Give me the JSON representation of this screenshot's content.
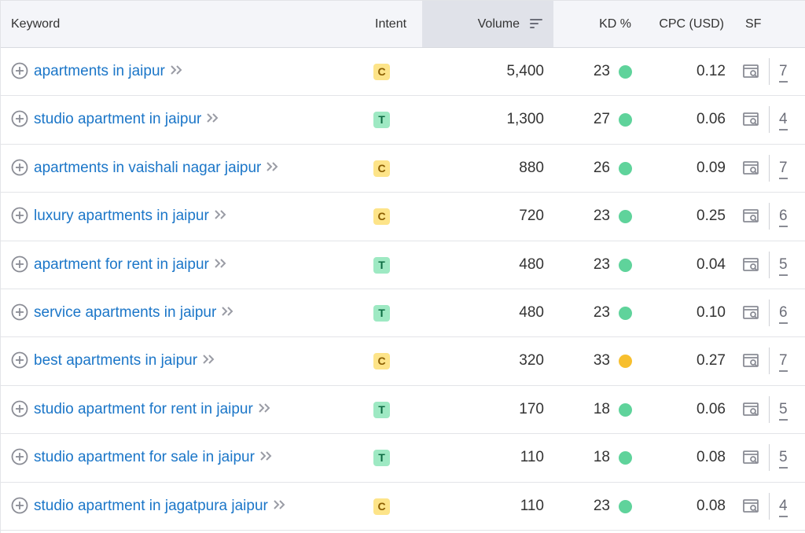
{
  "table": {
    "headers": {
      "keyword": "Keyword",
      "intent": "Intent",
      "volume": "Volume",
      "kd": "KD %",
      "cpc": "CPC (USD)",
      "sf": "SF"
    },
    "colors": {
      "link": "#1b76c8",
      "intent_c_bg": "#fde489",
      "intent_t_bg": "#9ee9c3",
      "kd_easy": "#5fd39b",
      "kd_medium": "#f7bf2e"
    },
    "rows": [
      {
        "keyword": "apartments in jaipur",
        "intent": "C",
        "volume": "5,400",
        "kd": "23",
        "kd_level": "easy",
        "cpc": "0.12",
        "sf": "7"
      },
      {
        "keyword": "studio apartment in jaipur",
        "intent": "T",
        "volume": "1,300",
        "kd": "27",
        "kd_level": "easy",
        "cpc": "0.06",
        "sf": "4"
      },
      {
        "keyword": "apartments in vaishali nagar jaipur",
        "intent": "C",
        "volume": "880",
        "kd": "26",
        "kd_level": "easy",
        "cpc": "0.09",
        "sf": "7"
      },
      {
        "keyword": "luxury apartments in jaipur",
        "intent": "C",
        "volume": "720",
        "kd": "23",
        "kd_level": "easy",
        "cpc": "0.25",
        "sf": "6"
      },
      {
        "keyword": "apartment for rent in jaipur",
        "intent": "T",
        "volume": "480",
        "kd": "23",
        "kd_level": "easy",
        "cpc": "0.04",
        "sf": "5"
      },
      {
        "keyword": "service apartments in jaipur",
        "intent": "T",
        "volume": "480",
        "kd": "23",
        "kd_level": "easy",
        "cpc": "0.10",
        "sf": "6"
      },
      {
        "keyword": "best apartments in jaipur",
        "intent": "C",
        "volume": "320",
        "kd": "33",
        "kd_level": "medium",
        "cpc": "0.27",
        "sf": "7"
      },
      {
        "keyword": "studio apartment for rent in jaipur",
        "intent": "T",
        "volume": "170",
        "kd": "18",
        "kd_level": "easy",
        "cpc": "0.06",
        "sf": "5"
      },
      {
        "keyword": "studio apartment for sale in jaipur",
        "intent": "T",
        "volume": "110",
        "kd": "18",
        "kd_level": "easy",
        "cpc": "0.08",
        "sf": "5"
      },
      {
        "keyword": "studio apartment in jagatpura jaipur",
        "intent": "C",
        "volume": "110",
        "kd": "23",
        "kd_level": "easy",
        "cpc": "0.08",
        "sf": "4"
      }
    ]
  }
}
